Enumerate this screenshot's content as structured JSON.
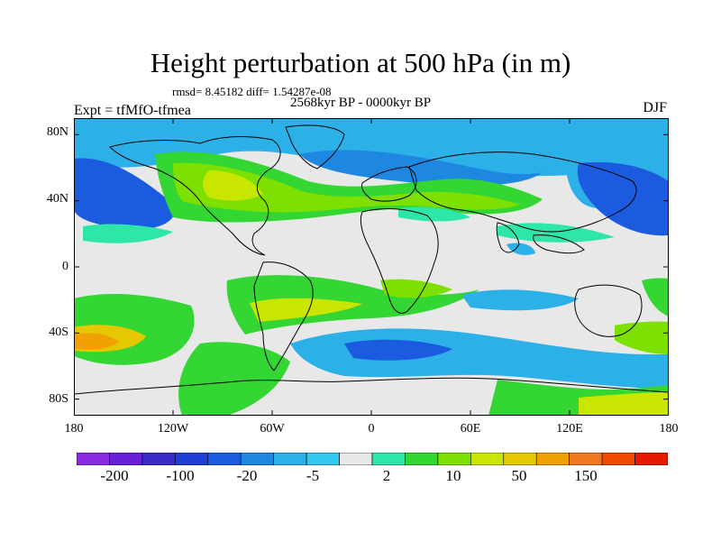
{
  "title": "Height perturbation at 500 hPa (in m)",
  "stats_line": "rmsd= 8.45182 diff= 1.54287e-08",
  "period": "2568kyr BP - 0000kyr BP",
  "experiment": "Expt = tfMfO-tfmea",
  "season": "DJF",
  "map": {
    "projection": "cylindrical equidistant",
    "lat_labels": [
      "80N",
      "40N",
      "0",
      "40S",
      "80S"
    ],
    "lon_labels": [
      "180",
      "120W",
      "60W",
      "0",
      "60E",
      "120E",
      "180"
    ],
    "lat_range": [
      -90,
      90
    ],
    "lon_range": [
      -180,
      180
    ],
    "no_data_color": "#e8e8e8",
    "coast_color": "#000000"
  },
  "colorbar": {
    "colors": [
      "#8a2be2",
      "#6a1fd9",
      "#3a2ac8",
      "#1f3fd4",
      "#1a5be0",
      "#1e88e0",
      "#2bb0e8",
      "#33c8ee",
      "#e8e8e8",
      "#2ee6a8",
      "#33d633",
      "#7de000",
      "#c8e600",
      "#e6c800",
      "#f0a000",
      "#f07820",
      "#f04a00",
      "#e61a00"
    ],
    "labels": [
      "-200",
      "-100",
      "-20",
      "-5",
      "2",
      "10",
      "50",
      "150"
    ]
  }
}
